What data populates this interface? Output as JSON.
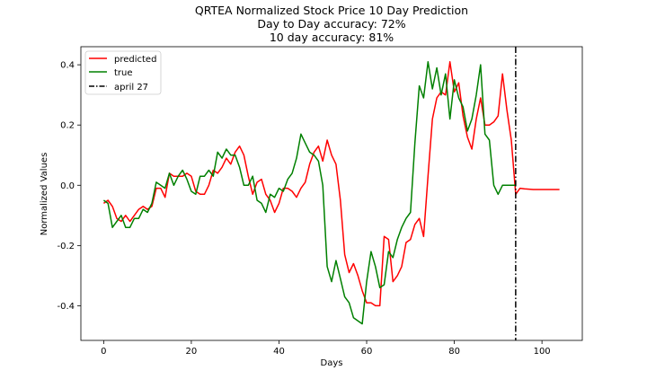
{
  "chart_data": {
    "type": "line",
    "title": "QRTEA Normalized Stock Price 10 Day Prediction",
    "subtitle_lines": [
      "Day to Day accuracy: 72%",
      "10 day accuracy: 81%"
    ],
    "xlabel": "Days",
    "ylabel": "Normalized Values",
    "xlim": [
      -5.2,
      109.2
    ],
    "ylim": [
      -0.515,
      0.46
    ],
    "xticks": [
      0,
      20,
      40,
      60,
      80,
      100
    ],
    "xtick_labels": [
      "0",
      "20",
      "40",
      "60",
      "80",
      "100"
    ],
    "yticks": [
      -0.4,
      -0.2,
      0.0,
      0.2,
      0.4
    ],
    "ytick_labels": [
      "-0.4",
      "-0.2",
      "0.0",
      "0.2",
      "0.4"
    ],
    "grid": false,
    "legend_position": "top-left",
    "series": [
      {
        "name": "predicted",
        "color": "#ff0000",
        "x": [
          0,
          1,
          2,
          3,
          4,
          5,
          6,
          7,
          8,
          9,
          10,
          11,
          12,
          13,
          14,
          15,
          16,
          17,
          18,
          19,
          20,
          21,
          22,
          23,
          24,
          25,
          26,
          27,
          28,
          29,
          30,
          31,
          32,
          33,
          34,
          35,
          36,
          37,
          38,
          39,
          40,
          41,
          42,
          43,
          44,
          45,
          46,
          47,
          48,
          49,
          50,
          51,
          52,
          53,
          54,
          55,
          56,
          57,
          58,
          59,
          60,
          61,
          62,
          63,
          64,
          65,
          66,
          67,
          68,
          69,
          70,
          71,
          72,
          73,
          74,
          75,
          76,
          77,
          78,
          79,
          80,
          81,
          82,
          83,
          84,
          85,
          86,
          87,
          88,
          89,
          90,
          91,
          92,
          93,
          94,
          95,
          96,
          97,
          98,
          99,
          100,
          101,
          102,
          103,
          104
        ],
        "values": [
          -0.06,
          -0.05,
          -0.07,
          -0.11,
          -0.12,
          -0.1,
          -0.12,
          -0.1,
          -0.08,
          -0.07,
          -0.08,
          -0.07,
          -0.01,
          -0.01,
          -0.04,
          0.04,
          0.03,
          0.03,
          0.03,
          0.04,
          0.03,
          -0.02,
          -0.03,
          -0.03,
          0.0,
          0.05,
          0.04,
          0.06,
          0.09,
          0.07,
          0.11,
          0.13,
          0.1,
          0.03,
          -0.03,
          0.01,
          0.02,
          -0.03,
          -0.05,
          -0.09,
          -0.06,
          -0.01,
          -0.01,
          -0.02,
          -0.04,
          -0.01,
          0.01,
          0.07,
          0.11,
          0.13,
          0.08,
          0.15,
          0.1,
          0.07,
          -0.05,
          -0.23,
          -0.29,
          -0.26,
          -0.3,
          -0.35,
          -0.39,
          -0.39,
          -0.4,
          -0.4,
          -0.17,
          -0.18,
          -0.32,
          -0.3,
          -0.27,
          -0.19,
          -0.18,
          -0.13,
          -0.11,
          -0.17,
          0.03,
          0.22,
          0.29,
          0.31,
          0.3,
          0.41,
          0.31,
          0.34,
          0.23,
          0.16,
          0.12,
          0.22,
          0.29,
          0.2,
          0.2,
          0.21,
          0.23,
          0.37,
          0.25,
          0.15,
          -0.03,
          -0.01,
          -0.012,
          -0.013,
          -0.014,
          -0.014,
          -0.014,
          -0.014,
          -0.014,
          -0.014,
          -0.014
        ]
      },
      {
        "name": "true",
        "color": "#008000",
        "x": [
          0,
          1,
          2,
          3,
          4,
          5,
          6,
          7,
          8,
          9,
          10,
          11,
          12,
          13,
          14,
          15,
          16,
          17,
          18,
          19,
          20,
          21,
          22,
          23,
          24,
          25,
          26,
          27,
          28,
          29,
          30,
          31,
          32,
          33,
          34,
          35,
          36,
          37,
          38,
          39,
          40,
          41,
          42,
          43,
          44,
          45,
          46,
          47,
          48,
          49,
          50,
          51,
          52,
          53,
          54,
          55,
          56,
          57,
          58,
          59,
          60,
          61,
          62,
          63,
          64,
          65,
          66,
          67,
          68,
          69,
          70,
          71,
          72,
          73,
          74,
          75,
          76,
          77,
          78,
          79,
          80,
          81,
          82,
          83,
          84,
          85,
          86,
          87,
          88,
          89,
          90,
          91,
          92,
          93,
          94
        ],
        "values": [
          -0.05,
          -0.06,
          -0.14,
          -0.12,
          -0.1,
          -0.14,
          -0.14,
          -0.11,
          -0.11,
          -0.08,
          -0.09,
          -0.06,
          0.01,
          0.0,
          -0.01,
          0.04,
          0.0,
          0.03,
          0.05,
          0.02,
          -0.02,
          -0.03,
          0.03,
          0.03,
          0.05,
          0.03,
          0.11,
          0.09,
          0.12,
          0.1,
          0.1,
          0.06,
          0.0,
          0.0,
          0.03,
          -0.05,
          -0.06,
          -0.09,
          -0.03,
          -0.04,
          -0.01,
          -0.02,
          0.02,
          0.04,
          0.09,
          0.17,
          0.14,
          0.11,
          0.1,
          0.08,
          0.0,
          -0.27,
          -0.32,
          -0.25,
          -0.31,
          -0.37,
          -0.39,
          -0.44,
          -0.45,
          -0.46,
          -0.32,
          -0.22,
          -0.27,
          -0.34,
          -0.33,
          -0.22,
          -0.24,
          -0.18,
          -0.14,
          -0.11,
          -0.09,
          0.14,
          0.33,
          0.29,
          0.41,
          0.32,
          0.39,
          0.3,
          0.37,
          0.22,
          0.35,
          0.29,
          0.26,
          0.18,
          0.22,
          0.3,
          0.4,
          0.17,
          0.15,
          0.0,
          -0.03,
          0.0,
          0.0,
          0.0,
          0.0
        ]
      }
    ],
    "annotations": [
      {
        "type": "vline",
        "x": 94,
        "label": "april 27",
        "color": "#000000",
        "style": "dash-dot"
      }
    ]
  }
}
